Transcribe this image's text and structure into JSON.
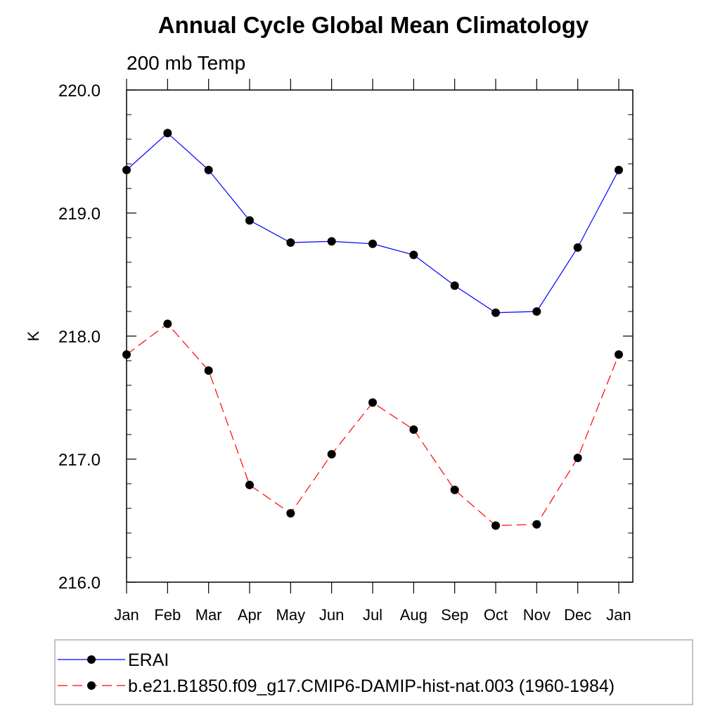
{
  "chart_data": {
    "type": "line",
    "title": "Annual Cycle Global Mean Climatology",
    "subtitle": "200 mb Temp",
    "xlabel": "",
    "ylabel": "K",
    "categories": [
      "Jan",
      "Feb",
      "Mar",
      "Apr",
      "May",
      "Jun",
      "Jul",
      "Aug",
      "Sep",
      "Oct",
      "Nov",
      "Dec",
      "Jan"
    ],
    "ylim": [
      216.0,
      220.0
    ],
    "yticks": [
      "216.0",
      "217.0",
      "218.0",
      "219.0",
      "220.0"
    ],
    "grid": false,
    "legend_position": "bottom",
    "series": [
      {
        "name": "ERAI",
        "color": "#0000ff",
        "dash": "solid",
        "marker": "filled-circle",
        "values": [
          219.35,
          219.65,
          219.35,
          218.94,
          218.76,
          218.77,
          218.75,
          218.66,
          218.41,
          218.19,
          218.2,
          218.72,
          219.35
        ]
      },
      {
        "name": "b.e21.B1850.f09_g17.CMIP6-DAMIP-hist-nat.003 (1960-1984)",
        "color": "#ff0000",
        "dash": "dashed",
        "marker": "filled-circle",
        "values": [
          217.85,
          218.1,
          217.72,
          216.79,
          216.56,
          217.04,
          217.46,
          217.24,
          216.75,
          216.46,
          216.47,
          217.01,
          217.85
        ]
      }
    ]
  }
}
